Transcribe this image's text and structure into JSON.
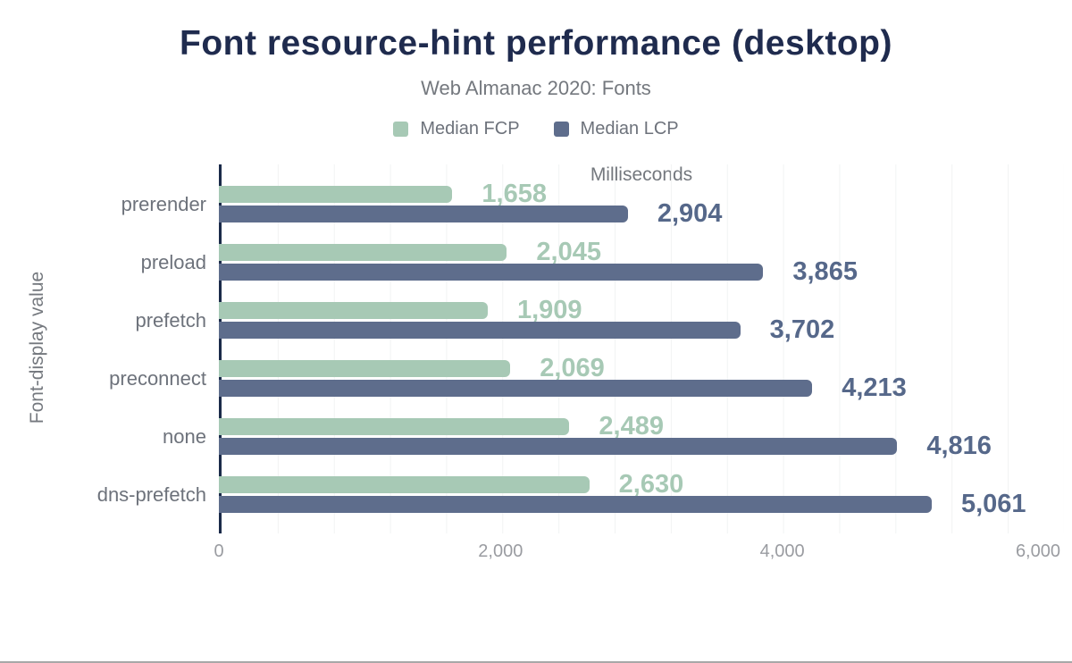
{
  "header": {
    "title": "Font resource-hint performance (desktop)",
    "subtitle": "Web Almanac 2020: Fonts"
  },
  "legend": [
    {
      "label": "Median FCP",
      "color": "#a7c9b5"
    },
    {
      "label": "Median LCP",
      "color": "#5e6d8c"
    }
  ],
  "chart_data": {
    "type": "bar",
    "orientation": "horizontal",
    "title": "Font resource-hint performance (desktop)",
    "subtitle": "Web Almanac 2020: Fonts",
    "categories": [
      "prerender",
      "preload",
      "prefetch",
      "preconnect",
      "none",
      "dns-prefetch"
    ],
    "series": [
      {
        "name": "Median FCP",
        "color": "#a7c9b5",
        "label_color": "#a7c9b5",
        "values": [
          1658,
          2045,
          1909,
          2069,
          2489,
          2630
        ],
        "labels": [
          "1,658",
          "2,045",
          "1,909",
          "2,069",
          "2,489",
          "2,630"
        ]
      },
      {
        "name": "Median LCP",
        "color": "#5e6d8c",
        "label_color": "#56688a",
        "values": [
          2904,
          3865,
          3702,
          4213,
          4816,
          5061
        ],
        "labels": [
          "2,904",
          "3,865",
          "3,702",
          "4,213",
          "4,816",
          "5,061"
        ]
      }
    ],
    "xlabel": "Milliseconds",
    "ylabel": "Font-display value",
    "xlim": [
      0,
      6000
    ],
    "x_tick_values": [
      0,
      2000,
      4000,
      6000
    ],
    "x_tick_labels": [
      "0",
      "2,000",
      "4,000",
      "6,000"
    ],
    "grid_step": 400,
    "grid": true,
    "legend_position": "top"
  },
  "colors": {
    "title": "#1f2b4e",
    "subtitle": "#74787e",
    "category_label": "#6d727b",
    "tick_label": "#9a9ca1",
    "axis_line": "#1b2a4a",
    "gridline": "#f1f3f3",
    "fcp_bar": "#a7c9b5",
    "lcp_bar": "#5e6d8c",
    "lcp_value_label": "#56688a"
  }
}
